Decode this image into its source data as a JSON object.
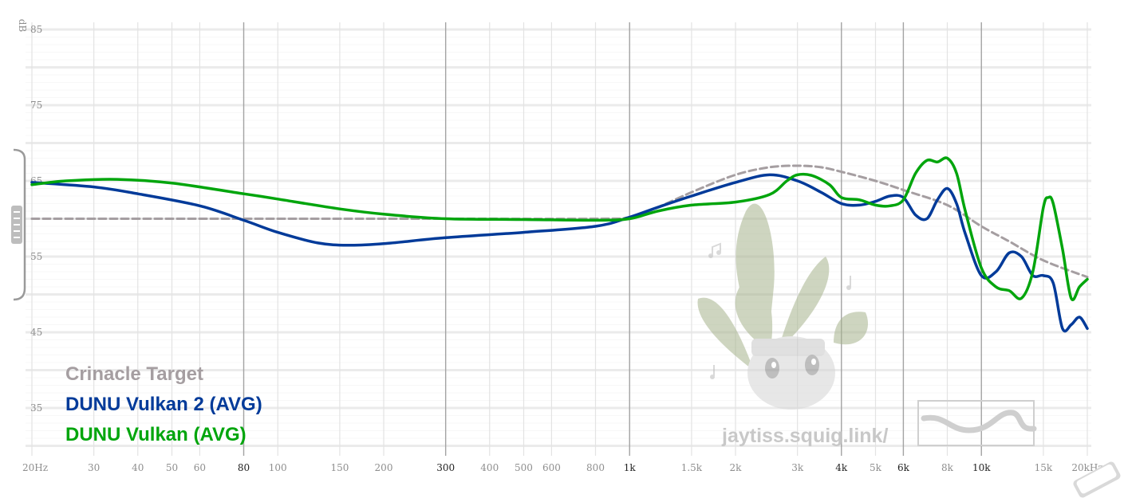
{
  "chart_data": {
    "type": "line",
    "ylabel": "dB",
    "ylim": [
      30,
      85
    ],
    "x_scale": "log",
    "xlim": [
      20,
      20000
    ],
    "grid": true,
    "legend_position": "bottom-left",
    "y_ticks": [
      {
        "value": 85,
        "label": "85"
      },
      {
        "value": 75,
        "label": "75"
      },
      {
        "value": 65,
        "label": "65"
      },
      {
        "value": 55,
        "label": "55"
      },
      {
        "value": 45,
        "label": "45"
      },
      {
        "value": 35,
        "label": "35"
      }
    ],
    "x_ticks": [
      {
        "value": 20,
        "label": "20Hz",
        "major": false
      },
      {
        "value": 30,
        "label": "30",
        "major": false
      },
      {
        "value": 40,
        "label": "40",
        "major": false
      },
      {
        "value": 50,
        "label": "50",
        "major": false
      },
      {
        "value": 60,
        "label": "60",
        "major": false
      },
      {
        "value": 80,
        "label": "80",
        "major": true
      },
      {
        "value": 100,
        "label": "100",
        "major": false
      },
      {
        "value": 150,
        "label": "150",
        "major": false
      },
      {
        "value": 200,
        "label": "200",
        "major": false
      },
      {
        "value": 300,
        "label": "300",
        "major": true
      },
      {
        "value": 400,
        "label": "400",
        "major": false
      },
      {
        "value": 500,
        "label": "500",
        "major": false
      },
      {
        "value": 600,
        "label": "600",
        "major": false
      },
      {
        "value": 800,
        "label": "800",
        "major": false
      },
      {
        "value": 1000,
        "label": "1k",
        "major": true
      },
      {
        "value": 1500,
        "label": "1.5k",
        "major": false
      },
      {
        "value": 2000,
        "label": "2k",
        "major": false
      },
      {
        "value": 3000,
        "label": "3k",
        "major": false
      },
      {
        "value": 4000,
        "label": "4k",
        "major": true
      },
      {
        "value": 5000,
        "label": "5k",
        "major": false
      },
      {
        "value": 6000,
        "label": "6k",
        "major": true
      },
      {
        "value": 8000,
        "label": "8k",
        "major": false
      },
      {
        "value": 10000,
        "label": "10k",
        "major": true
      },
      {
        "value": 15000,
        "label": "15k",
        "major": false
      },
      {
        "value": 20000,
        "label": "20kHz",
        "major": false
      }
    ],
    "series": [
      {
        "name": "Crinacle Target",
        "color": "#a59ea1",
        "dashed": true,
        "points": [
          [
            20,
            60
          ],
          [
            100,
            60
          ],
          [
            300,
            60
          ],
          [
            800,
            60
          ],
          [
            1000,
            60.2
          ],
          [
            1200,
            61.5
          ],
          [
            1500,
            63.5
          ],
          [
            2000,
            65.8
          ],
          [
            2500,
            66.8
          ],
          [
            3000,
            67
          ],
          [
            3500,
            66.8
          ],
          [
            4000,
            66.2
          ],
          [
            5000,
            65
          ],
          [
            6000,
            63.8
          ],
          [
            8000,
            61.8
          ],
          [
            10000,
            59
          ],
          [
            12000,
            57
          ],
          [
            15000,
            54.5
          ],
          [
            20000,
            52.3
          ]
        ]
      },
      {
        "name": "DUNU Vulkan 2 (AVG)",
        "color": "#003a99",
        "dashed": false,
        "points": [
          [
            20,
            64.8
          ],
          [
            30,
            64.2
          ],
          [
            40,
            63.3
          ],
          [
            60,
            61.7
          ],
          [
            80,
            59.8
          ],
          [
            100,
            58.2
          ],
          [
            130,
            56.8
          ],
          [
            160,
            56.5
          ],
          [
            200,
            56.7
          ],
          [
            300,
            57.5
          ],
          [
            500,
            58.2
          ],
          [
            800,
            59
          ],
          [
            1000,
            60.2
          ],
          [
            1200,
            61.5
          ],
          [
            1500,
            63
          ],
          [
            2000,
            64.8
          ],
          [
            2500,
            65.8
          ],
          [
            3000,
            65
          ],
          [
            3500,
            63.5
          ],
          [
            4000,
            62
          ],
          [
            4500,
            61.8
          ],
          [
            5000,
            62.3
          ],
          [
            5500,
            63
          ],
          [
            6000,
            62.8
          ],
          [
            6500,
            60.5
          ],
          [
            7000,
            60
          ],
          [
            7500,
            62.5
          ],
          [
            8000,
            64
          ],
          [
            8500,
            62
          ],
          [
            9000,
            58
          ],
          [
            10000,
            52.5
          ],
          [
            11000,
            53
          ],
          [
            12000,
            55.5
          ],
          [
            13000,
            55
          ],
          [
            14000,
            52.5
          ],
          [
            15000,
            52.5
          ],
          [
            16000,
            51.5
          ],
          [
            17000,
            45.5
          ],
          [
            18000,
            46
          ],
          [
            19000,
            47
          ],
          [
            20000,
            45.5
          ]
        ]
      },
      {
        "name": "DUNU Vulkan (AVG)",
        "color": "#00a50c",
        "dashed": false,
        "points": [
          [
            20,
            64.5
          ],
          [
            25,
            65
          ],
          [
            35,
            65.2
          ],
          [
            50,
            64.7
          ],
          [
            80,
            63.3
          ],
          [
            100,
            62.6
          ],
          [
            150,
            61.3
          ],
          [
            200,
            60.6
          ],
          [
            300,
            60
          ],
          [
            500,
            59.9
          ],
          [
            800,
            59.8
          ],
          [
            1000,
            60
          ],
          [
            1200,
            61
          ],
          [
            1500,
            61.8
          ],
          [
            2000,
            62.2
          ],
          [
            2500,
            63.2
          ],
          [
            2800,
            65
          ],
          [
            3000,
            65.8
          ],
          [
            3300,
            65.7
          ],
          [
            3700,
            64.5
          ],
          [
            4000,
            62.8
          ],
          [
            4500,
            62.5
          ],
          [
            5000,
            61.8
          ],
          [
            5500,
            61.7
          ],
          [
            6000,
            62.5
          ],
          [
            6500,
            66
          ],
          [
            7000,
            67.7
          ],
          [
            7500,
            67.5
          ],
          [
            8000,
            68
          ],
          [
            8500,
            66
          ],
          [
            9000,
            61
          ],
          [
            10000,
            53.5
          ],
          [
            11000,
            51
          ],
          [
            12000,
            50.5
          ],
          [
            13000,
            49.5
          ],
          [
            14000,
            53
          ],
          [
            15000,
            61.5
          ],
          [
            15500,
            62.8
          ],
          [
            16000,
            62
          ],
          [
            17000,
            56
          ],
          [
            18000,
            49.5
          ],
          [
            19000,
            51
          ],
          [
            20000,
            52
          ]
        ]
      }
    ]
  },
  "watermark": {
    "text": "jaytiss.squig.link/"
  }
}
